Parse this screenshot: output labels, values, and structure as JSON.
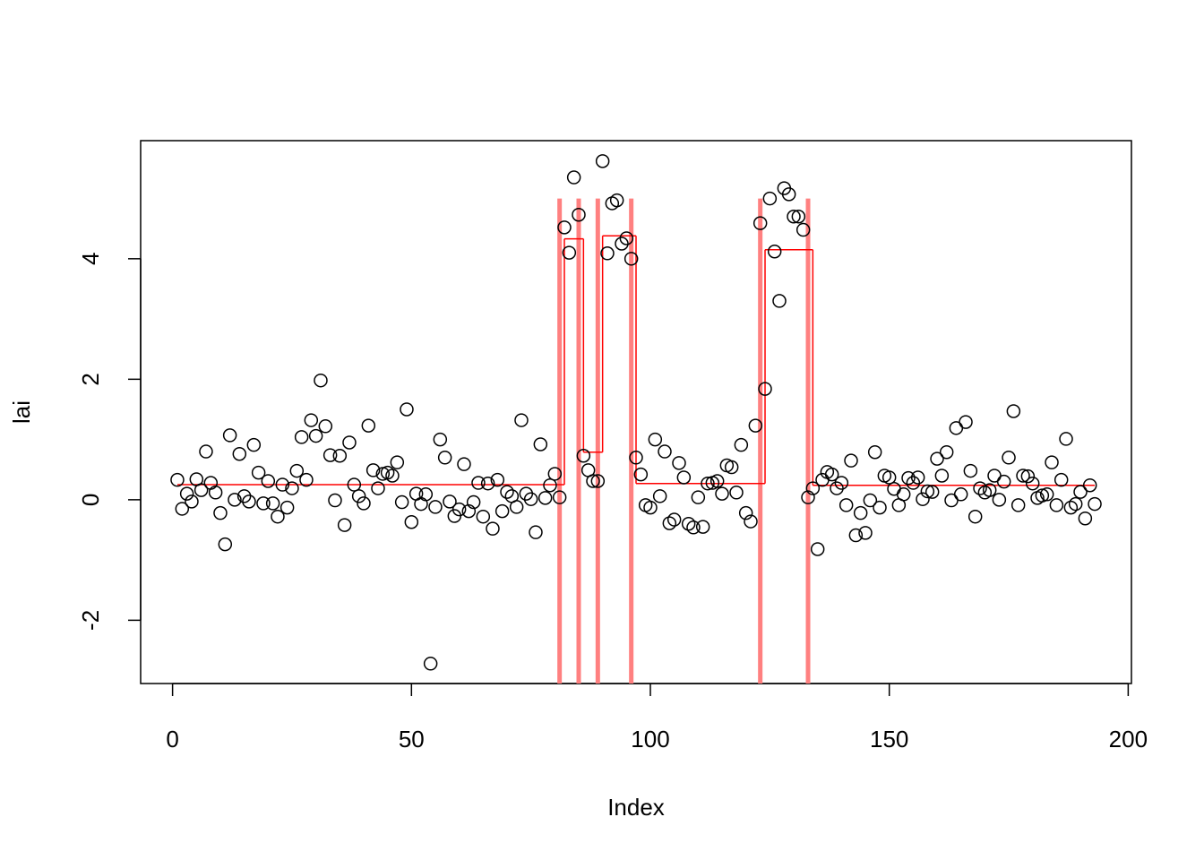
{
  "chart_data": {
    "type": "scatter",
    "x_label": "Index",
    "y_label": "lai",
    "x": [
      1,
      2,
      3,
      4,
      5,
      6,
      7,
      8,
      9,
      10,
      11,
      12,
      13,
      14,
      15,
      16,
      17,
      18,
      19,
      20,
      21,
      22,
      23,
      24,
      25,
      26,
      27,
      28,
      29,
      30,
      31,
      32,
      33,
      34,
      35,
      36,
      37,
      38,
      39,
      40,
      41,
      42,
      43,
      44,
      45,
      46,
      47,
      48,
      49,
      50,
      51,
      52,
      53,
      54,
      55,
      56,
      57,
      58,
      59,
      60,
      61,
      62,
      63,
      64,
      65,
      66,
      67,
      68,
      69,
      70,
      71,
      72,
      73,
      74,
      75,
      76,
      77,
      78,
      79,
      80,
      81,
      82,
      83,
      84,
      85,
      86,
      87,
      88,
      89,
      90,
      91,
      92,
      93,
      94,
      95,
      96,
      97,
      98,
      99,
      100,
      101,
      102,
      103,
      104,
      105,
      106,
      107,
      108,
      109,
      110,
      111,
      112,
      113,
      114,
      115,
      116,
      117,
      118,
      119,
      120,
      121,
      122,
      123,
      124,
      125,
      126,
      127,
      128,
      129,
      130,
      131,
      132,
      133,
      134,
      135,
      136,
      137,
      138,
      139,
      140,
      141,
      142,
      143,
      144,
      145,
      146,
      147,
      148,
      149,
      150,
      151,
      152,
      153,
      154,
      155,
      156,
      157,
      158,
      159,
      160,
      161,
      162,
      163,
      164,
      165,
      166,
      167,
      168,
      169,
      170,
      171,
      172,
      173,
      174,
      175,
      176,
      177,
      178,
      179,
      180,
      181,
      182,
      183,
      184,
      185,
      186,
      187,
      188,
      189,
      190,
      191,
      192,
      193
    ],
    "values": [
      0.33,
      -0.15,
      0.1,
      -0.03,
      0.34,
      0.16,
      0.8,
      0.28,
      0.12,
      -0.22,
      -0.74,
      1.07,
      0.0,
      0.76,
      0.06,
      -0.03,
      0.91,
      0.45,
      -0.06,
      0.31,
      -0.06,
      -0.28,
      0.25,
      -0.13,
      0.19,
      0.48,
      1.04,
      0.33,
      1.32,
      1.06,
      1.98,
      1.22,
      0.74,
      -0.01,
      0.73,
      -0.42,
      0.95,
      0.25,
      0.06,
      -0.06,
      1.23,
      0.49,
      0.19,
      0.43,
      0.45,
      0.4,
      0.62,
      -0.04,
      1.5,
      -0.37,
      0.1,
      -0.07,
      0.09,
      -2.72,
      -0.12,
      1.0,
      0.7,
      -0.03,
      -0.27,
      -0.16,
      0.59,
      -0.19,
      -0.04,
      0.28,
      -0.28,
      0.27,
      -0.48,
      0.33,
      -0.19,
      0.13,
      0.06,
      -0.12,
      1.32,
      0.1,
      0.01,
      -0.54,
      0.92,
      0.03,
      0.24,
      0.43,
      0.04,
      4.52,
      4.1,
      5.35,
      4.73,
      0.73,
      0.49,
      0.31,
      0.31,
      5.62,
      4.09,
      4.92,
      4.97,
      4.25,
      4.34,
      4.0,
      0.7,
      0.42,
      -0.09,
      -0.13,
      1.0,
      0.06,
      0.8,
      -0.39,
      -0.33,
      0.61,
      0.37,
      -0.4,
      -0.46,
      0.04,
      -0.45,
      0.27,
      0.28,
      0.31,
      0.1,
      0.57,
      0.54,
      0.12,
      0.91,
      -0.22,
      -0.36,
      1.23,
      4.59,
      1.84,
      5.0,
      4.12,
      3.3,
      5.17,
      5.07,
      4.7,
      4.7,
      4.48,
      0.04,
      0.19,
      -0.82,
      0.33,
      0.46,
      0.42,
      0.19,
      0.28,
      -0.09,
      0.65,
      -0.59,
      -0.22,
      -0.55,
      -0.01,
      0.79,
      -0.13,
      0.4,
      0.37,
      0.18,
      -0.09,
      0.09,
      0.36,
      0.28,
      0.37,
      0.01,
      0.14,
      0.13,
      0.68,
      0.4,
      0.79,
      -0.01,
      1.19,
      0.09,
      1.29,
      0.48,
      -0.28,
      0.19,
      0.12,
      0.16,
      0.4,
      0.0,
      0.3,
      0.7,
      1.47,
      -0.09,
      0.4,
      0.39,
      0.27,
      0.03,
      0.07,
      0.09,
      0.62,
      -0.09,
      0.33,
      1.01,
      -0.13,
      -0.07,
      0.13,
      -0.31,
      0.24,
      -0.07
    ],
    "color": "#000000",
    "fit": {
      "color": "#ff0000",
      "segments": [
        {
          "start": 1,
          "end": 82,
          "value": 0.25
        },
        {
          "start": 82,
          "end": 86,
          "value": 4.33
        },
        {
          "start": 86,
          "end": 90,
          "value": 0.79
        },
        {
          "start": 90,
          "end": 97,
          "value": 4.38
        },
        {
          "start": 97,
          "end": 124,
          "value": 0.27
        },
        {
          "start": 124,
          "end": 134,
          "value": 4.15
        },
        {
          "start": 134,
          "end": 193,
          "value": 0.24
        }
      ]
    },
    "changepoints": {
      "color": "#ff8080",
      "x": [
        81,
        85,
        89,
        96,
        123,
        133
      ],
      "top": 5
    },
    "xlim": [
      -6.68,
      200.68
    ],
    "ylim": [
      -3.05,
      5.96
    ],
    "xticks": [
      0,
      50,
      100,
      150,
      200
    ],
    "yticks": [
      -2,
      0,
      2,
      4
    ]
  }
}
